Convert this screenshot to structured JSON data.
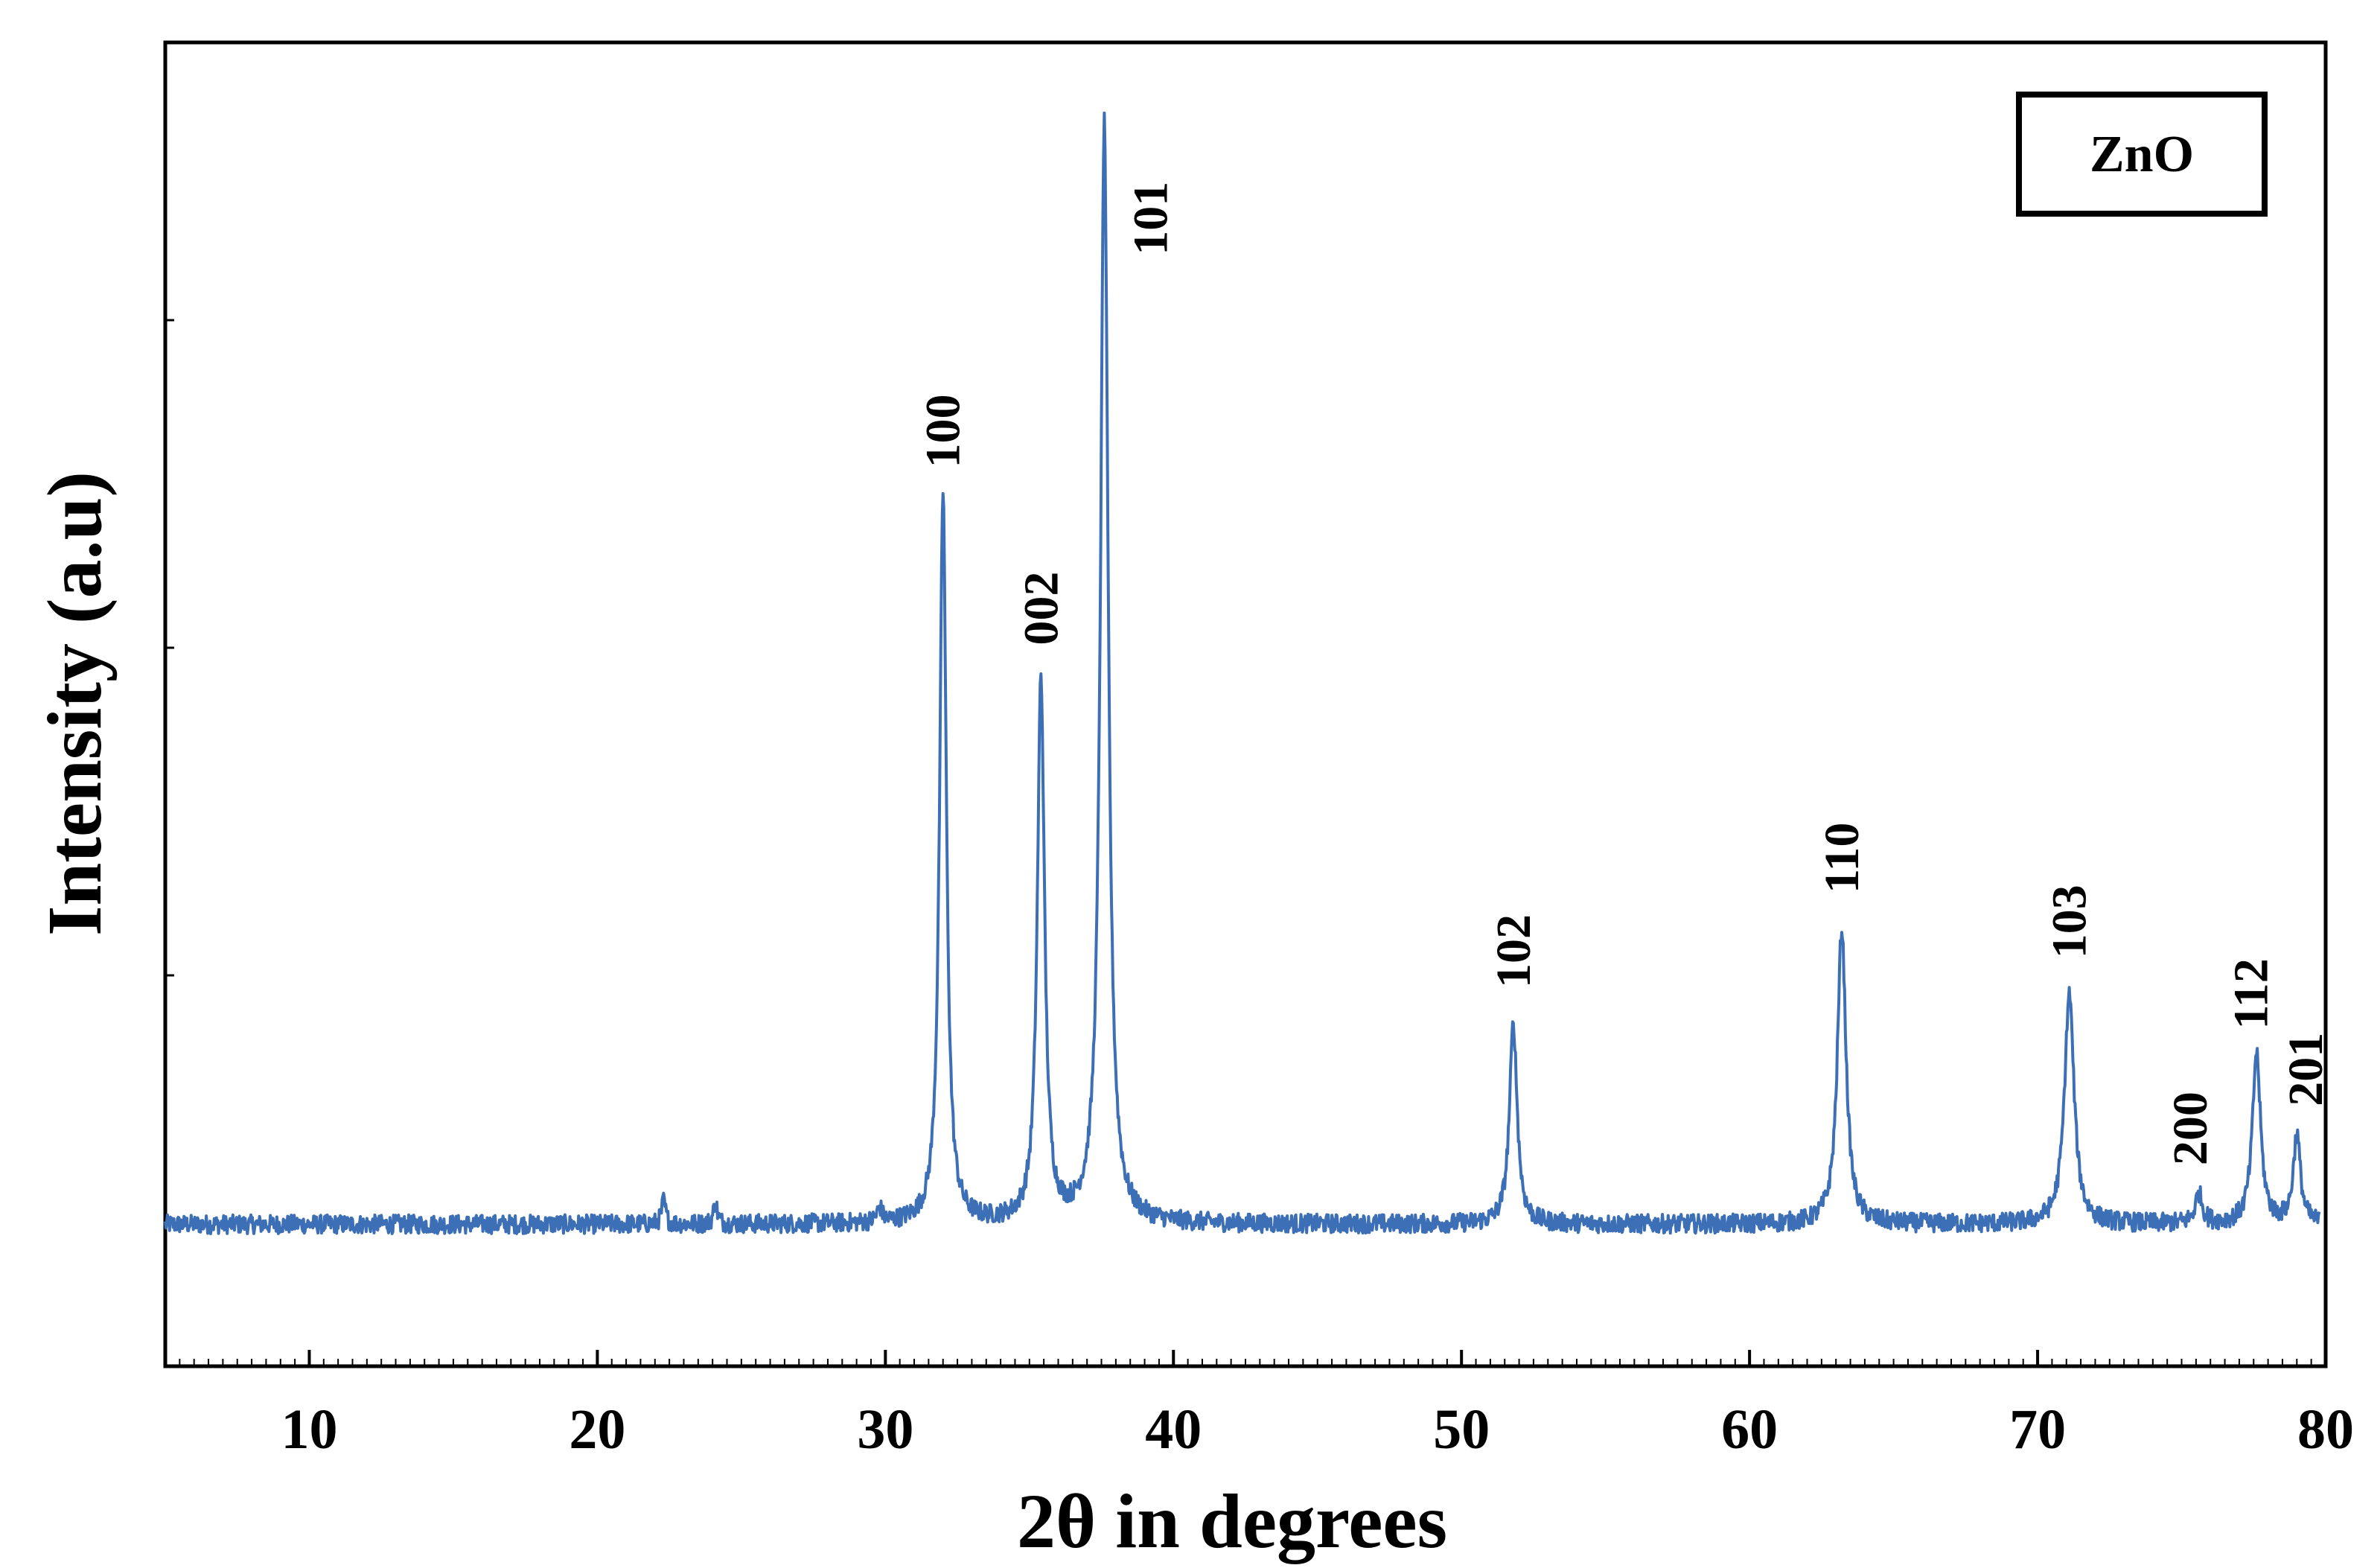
{
  "chart_data": {
    "type": "line",
    "xlabel": "2θ in degrees",
    "ylabel": "Intensity (a.u)",
    "xlim": [
      5,
      80
    ],
    "ylim": [
      -12,
      100
    ],
    "x_ticks": [
      10,
      20,
      30,
      40,
      50,
      60,
      70,
      80
    ],
    "grid": false,
    "legend": {
      "text": "ZnO",
      "position": "top-right"
    },
    "series": [
      {
        "color": "#3d6fb6",
        "baseline": 0,
        "noise": 0.8,
        "peaks": [
          {
            "x": 22.3,
            "y": 2.0,
            "w": 0.08
          },
          {
            "x": 24.1,
            "y": 1.8,
            "w": 0.08
          },
          {
            "x": 29.8,
            "y": 1.2,
            "w": 0.1
          },
          {
            "x": 32.0,
            "y": 62.0,
            "w": 0.14
          },
          {
            "x": 35.4,
            "y": 46.0,
            "w": 0.15
          },
          {
            "x": 37.6,
            "y": 93.0,
            "w": 0.16
          },
          {
            "x": 51.8,
            "y": 17.0,
            "w": 0.16
          },
          {
            "x": 63.2,
            "y": 25.0,
            "w": 0.18
          },
          {
            "x": 71.1,
            "y": 19.5,
            "w": 0.2
          },
          {
            "x": 75.6,
            "y": 2.5,
            "w": 0.15
          },
          {
            "x": 77.6,
            "y": 14.5,
            "w": 0.17
          },
          {
            "x": 79.0,
            "y": 7.5,
            "w": 0.15
          }
        ]
      }
    ],
    "annotations": [
      {
        "text": "100",
        "x": 32.0,
        "y": 64
      },
      {
        "text": "002",
        "x": 35.4,
        "y": 49
      },
      {
        "text": "101",
        "x": 39.2,
        "y": 82
      },
      {
        "text": "102",
        "x": 51.8,
        "y": 20
      },
      {
        "text": "110",
        "x": 63.2,
        "y": 28
      },
      {
        "text": "103",
        "x": 71.1,
        "y": 22.5
      },
      {
        "text": "200",
        "x": 75.3,
        "y": 5
      },
      {
        "text": "112",
        "x": 77.4,
        "y": 16.5
      },
      {
        "text": "201",
        "x": 79.3,
        "y": 10
      }
    ]
  }
}
